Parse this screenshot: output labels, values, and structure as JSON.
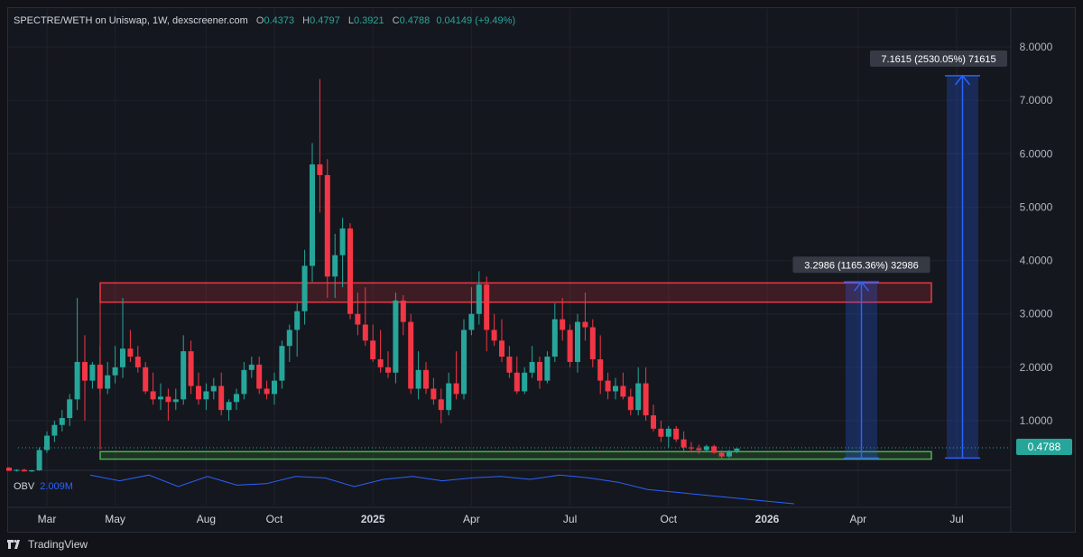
{
  "legend": {
    "symbol": "SPECTRE/WETH on Uniswap, 1W, dexscreener.com",
    "o_label": "O",
    "o_value": "0.4373",
    "h_label": "H",
    "h_value": "0.4797",
    "l_label": "L",
    "l_value": "0.3921",
    "c_label": "C",
    "c_value": "0.4788",
    "change": "0.04149 (+9.49%)"
  },
  "obv": {
    "label": "OBV",
    "value": "2.009M"
  },
  "footer": {
    "brand": "TradingView"
  },
  "price_tag": "0.4788",
  "measures": [
    {
      "label": "3.2986 (1165.36%) 32986",
      "from": 0.3,
      "to": 3.5986
    },
    {
      "label": "7.1615 (2530.05%) 71615",
      "from": 0.3,
      "to": 7.4615
    }
  ],
  "zones": [
    {
      "name": "resistance-zone",
      "low": 3.22,
      "high": 3.58,
      "color": "#f23645"
    },
    {
      "name": "support-zone",
      "low": 0.28,
      "high": 0.42,
      "color": "#4caf50"
    }
  ],
  "colors": {
    "up": "#26a69a",
    "down": "#f23645",
    "measure": "#2962ff",
    "bg": "#15171e"
  },
  "chart_data": {
    "type": "candlestick",
    "title": "SPECTRE/WETH on Uniswap, 1W, dexscreener.com",
    "y_ticks": [
      "1.0000",
      "2.0000",
      "3.0000",
      "4.0000",
      "5.0000",
      "6.0000",
      "7.0000",
      "8.0000"
    ],
    "ylim": [
      -0.4,
      8.4
    ],
    "x_ticks": [
      "Mar",
      "May",
      "Aug",
      "Oct",
      "2025",
      "Apr",
      "Jul",
      "Oct",
      "2026",
      "Apr",
      "Jul"
    ],
    "x_tick_weeks": [
      5,
      14,
      26,
      35,
      48,
      61,
      74,
      87,
      100,
      112,
      125
    ],
    "grid": true,
    "series": [
      {
        "name": "SPECTRE/WETH",
        "candles": [
          [
            0.12,
            0.13,
            0.06,
            0.06
          ],
          [
            0.06,
            0.09,
            0.05,
            0.08
          ],
          [
            0.08,
            0.1,
            0.05,
            0.05
          ],
          [
            0.05,
            0.08,
            0.04,
            0.07
          ],
          [
            0.07,
            0.5,
            0.06,
            0.45
          ],
          [
            0.45,
            0.8,
            0.4,
            0.72
          ],
          [
            0.72,
            1.0,
            0.6,
            0.92
          ],
          [
            0.92,
            1.2,
            0.8,
            1.05
          ],
          [
            1.05,
            1.5,
            0.9,
            1.4
          ],
          [
            1.4,
            3.3,
            1.2,
            2.1
          ],
          [
            2.1,
            2.6,
            1.0,
            1.75
          ],
          [
            1.75,
            2.1,
            1.6,
            2.05
          ],
          [
            2.05,
            2.4,
            1.5,
            1.6
          ],
          [
            1.6,
            2.1,
            1.5,
            1.85
          ],
          [
            1.85,
            2.4,
            1.7,
            2.0
          ],
          [
            2.0,
            3.3,
            1.8,
            2.35
          ],
          [
            2.35,
            2.7,
            2.1,
            2.2
          ],
          [
            2.2,
            2.4,
            1.9,
            2.0
          ],
          [
            2.0,
            2.1,
            1.5,
            1.55
          ],
          [
            1.55,
            1.9,
            1.3,
            1.4
          ],
          [
            1.4,
            1.7,
            1.2,
            1.45
          ],
          [
            1.45,
            1.6,
            1.0,
            1.35
          ],
          [
            1.35,
            1.6,
            1.2,
            1.4
          ],
          [
            1.4,
            2.6,
            1.3,
            2.3
          ],
          [
            2.3,
            2.5,
            1.5,
            1.65
          ],
          [
            1.65,
            1.9,
            1.3,
            1.4
          ],
          [
            1.4,
            1.7,
            1.2,
            1.55
          ],
          [
            1.55,
            1.8,
            1.4,
            1.65
          ],
          [
            1.65,
            1.9,
            1.1,
            1.2
          ],
          [
            1.2,
            1.4,
            1.0,
            1.35
          ],
          [
            1.35,
            1.6,
            1.2,
            1.5
          ],
          [
            1.5,
            2.1,
            1.4,
            1.95
          ],
          [
            1.95,
            2.2,
            1.8,
            2.05
          ],
          [
            2.05,
            2.2,
            1.5,
            1.6
          ],
          [
            1.6,
            1.75,
            1.4,
            1.5
          ],
          [
            1.5,
            1.9,
            1.3,
            1.75
          ],
          [
            1.75,
            2.5,
            1.6,
            2.4
          ],
          [
            2.4,
            2.8,
            2.1,
            2.7
          ],
          [
            2.7,
            3.2,
            2.2,
            3.05
          ],
          [
            3.05,
            4.2,
            2.8,
            3.9
          ],
          [
            3.9,
            6.2,
            3.6,
            5.8
          ],
          [
            5.8,
            7.4,
            4.9,
            5.6
          ],
          [
            5.6,
            5.9,
            3.3,
            3.7
          ],
          [
            3.7,
            4.5,
            3.3,
            4.1
          ],
          [
            4.1,
            4.8,
            3.5,
            4.6
          ],
          [
            4.6,
            4.7,
            2.9,
            3.0
          ],
          [
            3.0,
            3.4,
            2.6,
            2.8
          ],
          [
            2.8,
            3.5,
            2.4,
            2.5
          ],
          [
            2.5,
            2.8,
            2.1,
            2.15
          ],
          [
            2.15,
            2.7,
            1.9,
            2.0
          ],
          [
            2.0,
            2.3,
            1.8,
            1.9
          ],
          [
            1.9,
            3.4,
            1.7,
            3.25
          ],
          [
            3.25,
            3.35,
            2.6,
            2.85
          ],
          [
            2.85,
            3.0,
            1.5,
            1.6
          ],
          [
            1.6,
            2.3,
            1.4,
            1.95
          ],
          [
            1.95,
            2.1,
            1.5,
            1.6
          ],
          [
            1.6,
            1.8,
            1.3,
            1.4
          ],
          [
            1.4,
            1.6,
            0.95,
            1.2
          ],
          [
            1.2,
            1.9,
            1.1,
            1.7
          ],
          [
            1.7,
            2.3,
            1.4,
            1.5
          ],
          [
            1.5,
            2.9,
            1.4,
            2.7
          ],
          [
            2.7,
            3.5,
            2.6,
            3.0
          ],
          [
            3.0,
            3.8,
            2.8,
            3.55
          ],
          [
            3.55,
            3.7,
            2.3,
            2.7
          ],
          [
            2.7,
            3.0,
            2.4,
            2.5
          ],
          [
            2.5,
            2.9,
            2.1,
            2.2
          ],
          [
            2.2,
            2.4,
            1.8,
            1.9
          ],
          [
            1.9,
            2.2,
            1.5,
            1.55
          ],
          [
            1.55,
            2.0,
            1.5,
            1.9
          ],
          [
            1.9,
            2.4,
            1.8,
            2.1
          ],
          [
            2.1,
            2.2,
            1.6,
            1.75
          ],
          [
            1.75,
            2.3,
            1.7,
            2.2
          ],
          [
            2.2,
            3.2,
            2.1,
            2.9
          ],
          [
            2.9,
            3.3,
            2.5,
            2.7
          ],
          [
            2.7,
            2.8,
            2.0,
            2.1
          ],
          [
            2.1,
            3.0,
            1.9,
            2.85
          ],
          [
            2.85,
            3.4,
            2.5,
            2.75
          ],
          [
            2.75,
            2.9,
            2.0,
            2.15
          ],
          [
            2.15,
            2.6,
            1.5,
            1.75
          ],
          [
            1.75,
            1.9,
            1.4,
            1.55
          ],
          [
            1.55,
            1.8,
            1.4,
            1.65
          ],
          [
            1.65,
            1.9,
            1.4,
            1.45
          ],
          [
            1.45,
            1.6,
            1.1,
            1.2
          ],
          [
            1.2,
            2.0,
            1.1,
            1.7
          ],
          [
            1.7,
            2.0,
            1.0,
            1.1
          ],
          [
            1.1,
            1.3,
            0.8,
            0.85
          ],
          [
            0.85,
            1.0,
            0.6,
            0.7
          ],
          [
            0.7,
            0.9,
            0.5,
            0.85
          ],
          [
            0.85,
            0.9,
            0.6,
            0.65
          ],
          [
            0.65,
            0.8,
            0.4,
            0.5
          ],
          [
            0.5,
            0.6,
            0.4,
            0.48
          ],
          [
            0.48,
            0.55,
            0.38,
            0.45
          ],
          [
            0.45,
            0.55,
            0.42,
            0.52
          ],
          [
            0.52,
            0.55,
            0.38,
            0.4
          ],
          [
            0.4,
            0.45,
            0.28,
            0.33
          ],
          [
            0.33,
            0.45,
            0.3,
            0.4373
          ],
          [
            0.4373,
            0.4797,
            0.3921,
            0.4788
          ]
        ]
      }
    ],
    "obv_values": [
      -0.2,
      -0.6,
      -0.2,
      -1.0,
      -0.3,
      -0.9,
      -0.8,
      -0.3,
      -0.4,
      -1.0,
      -0.5,
      -0.3,
      -0.6,
      -0.4,
      -0.3,
      -0.5,
      -0.2,
      -0.4,
      -0.7,
      -1.2,
      -1.4,
      -1.6,
      -1.8,
      -2.0,
      -2.2
    ]
  }
}
